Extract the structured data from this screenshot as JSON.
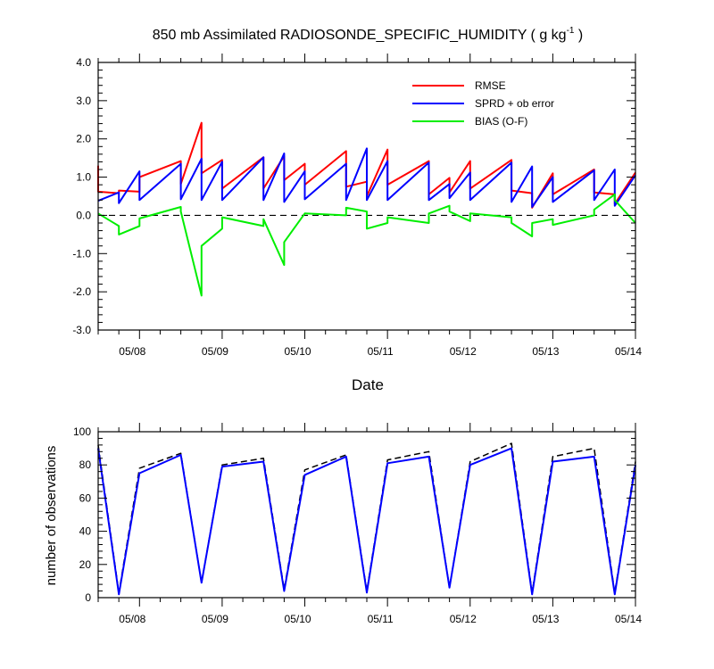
{
  "chart_data": [
    {
      "type": "line",
      "title": "850 mb Assimilated RADIOSONDE_SPECIFIC_HUMIDITY ( g kg",
      "title_exponent": "-1",
      "title_suffix": " )",
      "xlabel": "Date",
      "ylabel": "",
      "xlim": [
        0,
        6.5
      ],
      "x_unit": "days after 05/07 12Z",
      "ylim": [
        -3.0,
        4.0
      ],
      "yticks": [
        "-3.0",
        "-2.0",
        "-1.0",
        "0.0",
        "1.0",
        "2.0",
        "3.0",
        "4.0"
      ],
      "ytick_values": [
        -3,
        -2,
        -1,
        0,
        1,
        2,
        3,
        4
      ],
      "xticks": [
        "05/08",
        "05/09",
        "05/10",
        "05/11",
        "05/12",
        "05/13",
        "05/14"
      ],
      "xtick_values": [
        0.5,
        1.5,
        2.5,
        3.5,
        4.5,
        5.5,
        6.5
      ],
      "zero_line": true,
      "legend": {
        "placement": "top-right"
      },
      "series": [
        {
          "name": "RMSE",
          "color": "#ff0000",
          "x": [
            0.0,
            0.0,
            0.25,
            0.25,
            0.5,
            0.5,
            1.0,
            1.0,
            1.25,
            1.25,
            1.5,
            1.5,
            2.0,
            2.0,
            2.25,
            2.25,
            2.5,
            2.5,
            3.0,
            3.0,
            3.25,
            3.25,
            3.5,
            3.5,
            4.0,
            4.0,
            4.25,
            4.25,
            4.5,
            4.5,
            5.0,
            5.0,
            5.25,
            5.25,
            5.5,
            5.5,
            6.0,
            6.0,
            6.25,
            6.25,
            6.5
          ],
          "y": [
            1.3,
            0.62,
            0.58,
            0.65,
            0.62,
            1.0,
            1.42,
            0.82,
            2.42,
            1.1,
            1.45,
            0.7,
            1.52,
            0.7,
            1.55,
            0.92,
            1.35,
            0.8,
            1.68,
            0.75,
            0.88,
            0.5,
            1.72,
            0.8,
            1.42,
            0.55,
            0.98,
            0.6,
            1.42,
            0.7,
            1.45,
            0.65,
            0.58,
            0.2,
            1.1,
            0.55,
            1.2,
            0.6,
            0.55,
            0.3,
            1.12
          ]
        },
        {
          "name": "SPRD + ob error",
          "color": "#0000ff",
          "x": [
            0.0,
            0.25,
            0.25,
            0.5,
            0.5,
            1.0,
            1.0,
            1.25,
            1.25,
            1.5,
            1.5,
            2.0,
            2.0,
            2.25,
            2.25,
            2.5,
            2.5,
            3.0,
            3.0,
            3.25,
            3.25,
            3.5,
            3.5,
            4.0,
            4.0,
            4.25,
            4.25,
            4.5,
            4.5,
            5.0,
            5.0,
            5.25,
            5.25,
            5.5,
            5.5,
            6.0,
            6.0,
            6.25,
            6.25,
            6.5
          ],
          "y": [
            0.38,
            0.6,
            0.32,
            1.15,
            0.4,
            1.35,
            0.42,
            1.48,
            0.4,
            1.4,
            0.4,
            1.52,
            0.4,
            1.62,
            0.35,
            1.15,
            0.42,
            1.35,
            0.4,
            1.75,
            0.4,
            1.42,
            0.4,
            1.38,
            0.4,
            0.82,
            0.45,
            1.12,
            0.4,
            1.38,
            0.35,
            1.28,
            0.22,
            1.0,
            0.35,
            1.18,
            0.4,
            1.2,
            0.25,
            1.05
          ]
        },
        {
          "name": "BIAS (O-F)",
          "color": "#00ee00",
          "x": [
            0.0,
            0.25,
            0.25,
            0.5,
            0.5,
            1.0,
            1.0,
            1.25,
            1.25,
            1.5,
            1.5,
            2.0,
            2.0,
            2.25,
            2.25,
            2.5,
            2.5,
            3.0,
            3.0,
            3.25,
            3.25,
            3.5,
            3.5,
            4.0,
            4.0,
            4.25,
            4.25,
            4.5,
            4.5,
            5.0,
            5.0,
            5.25,
            5.25,
            5.5,
            5.5,
            6.0,
            6.0,
            6.25,
            6.25,
            6.5
          ],
          "y": [
            0.05,
            -0.28,
            -0.5,
            -0.28,
            -0.08,
            0.22,
            0.1,
            -2.1,
            -0.8,
            -0.35,
            -0.05,
            -0.28,
            -0.1,
            -1.3,
            -0.7,
            0.05,
            0.05,
            0.0,
            0.2,
            0.1,
            -0.35,
            -0.2,
            -0.05,
            -0.2,
            0.05,
            0.25,
            0.1,
            -0.15,
            0.05,
            -0.05,
            -0.2,
            -0.55,
            -0.2,
            -0.1,
            -0.25,
            0.0,
            0.15,
            0.55,
            0.4,
            -0.2
          ]
        }
      ]
    },
    {
      "type": "line",
      "title": "",
      "xlabel": "",
      "ylabel": "number of observations",
      "xlim": [
        0,
        6.5
      ],
      "x_unit": "days after 05/07 12Z",
      "ylim": [
        0,
        100
      ],
      "yticks": [
        "0",
        "20",
        "40",
        "60",
        "80",
        "100"
      ],
      "ytick_values": [
        0,
        20,
        40,
        60,
        80,
        100
      ],
      "xticks": [
        "05/08",
        "05/09",
        "05/10",
        "05/11",
        "05/12",
        "05/13",
        "05/14"
      ],
      "xtick_values": [
        0.5,
        1.5,
        2.5,
        3.5,
        4.5,
        5.5,
        6.5
      ],
      "series": [
        {
          "name": "",
          "color": "#000000",
          "dashed": true,
          "x": [
            0.0,
            0.25,
            0.5,
            1.0,
            1.25,
            1.5,
            2.0,
            2.25,
            2.5,
            3.0,
            3.25,
            3.5,
            4.0,
            4.25,
            4.5,
            5.0,
            5.25,
            5.5,
            6.0,
            6.25,
            6.5
          ],
          "y": [
            92,
            3,
            78,
            87,
            9,
            80,
            84,
            5,
            77,
            86,
            4,
            83,
            88,
            6,
            82,
            93,
            3,
            85,
            90,
            3,
            82
          ]
        },
        {
          "name": "",
          "color": "#0000ff",
          "x": [
            0.0,
            0.25,
            0.5,
            1.0,
            1.25,
            1.5,
            2.0,
            2.25,
            2.5,
            3.0,
            3.25,
            3.5,
            4.0,
            4.25,
            4.5,
            5.0,
            5.25,
            5.5,
            6.0,
            6.25,
            6.5
          ],
          "y": [
            90,
            2,
            75,
            86,
            9,
            79,
            82,
            4,
            74,
            85,
            3,
            81,
            85,
            6,
            80,
            90,
            2,
            82,
            85,
            2,
            80
          ]
        }
      ]
    }
  ]
}
